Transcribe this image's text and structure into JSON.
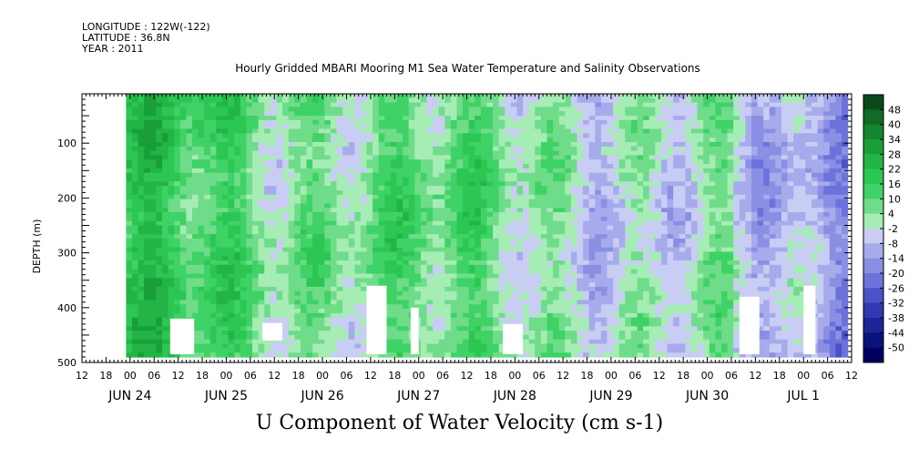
{
  "meta": {
    "longitude": "LONGITUDE : 122W(-122)",
    "latitude": "LATITUDE : 36.8N",
    "year": "YEAR : 2011"
  },
  "chart_data": {
    "type": "heatmap",
    "title": "Hourly Gridded MBARI Mooring M1 Sea Water Temperature and Salinity Observations",
    "bottom_title": "U Component of Water Velocity (cm s-1)",
    "ylabel": "DEPTH (m)",
    "ylim": [
      500,
      10
    ],
    "y_ticks": [
      100,
      200,
      300,
      400,
      500
    ],
    "x_hour_labels": [
      "12",
      "18",
      "00",
      "06",
      "12",
      "18",
      "00",
      "06",
      "12",
      "18",
      "00",
      "06",
      "12",
      "18",
      "00",
      "06",
      "12",
      "18",
      "00",
      "06",
      "12",
      "18",
      "00",
      "06",
      "12",
      "18",
      "00",
      "06",
      "12",
      "18",
      "00",
      "06",
      "12"
    ],
    "x_day_labels": [
      "JUN 24",
      "JUN 25",
      "JUN 26",
      "JUN 27",
      "JUN 28",
      "JUN 29",
      "JUN 30",
      "JUL  1"
    ],
    "colorbar_levels": [
      "48",
      "40",
      "34",
      "28",
      "22",
      "16",
      "10",
      "4",
      "-2",
      "-8",
      "-14",
      "-20",
      "-26",
      "-32",
      "-38",
      "-44",
      "-50"
    ],
    "colorbar_colors": [
      "#0a4a1a",
      "#0f6b25",
      "#14862e",
      "#1a9e38",
      "#22b546",
      "#2cc653",
      "#3fd266",
      "#6fdc89",
      "#a6ecb5",
      "#c9cdf3",
      "#a7abec",
      "#8a8fe4",
      "#6c72db",
      "#4a52c8",
      "#3039b0",
      "#1c2496",
      "#0c127c",
      "#000060"
    ],
    "time_range_hours": [
      -12,
      180
    ],
    "data_depth_range": [
      10,
      485
    ],
    "data_description_series": [
      {
        "day": "JUN 24",
        "dominant": "positive (green, ~10 to 22)"
      },
      {
        "day": "JUN 25",
        "dominant": "positive (green, ~10 to 22)"
      },
      {
        "day": "JUN 26",
        "dominant": "positive (green, ~4 to 16)"
      },
      {
        "day": "JUN 27",
        "dominant": "mixed (green with light blue near surface)"
      },
      {
        "day": "JUN 28",
        "dominant": "positive near 0 to 10"
      },
      {
        "day": "JUN 29",
        "dominant": "mixed green / light blue"
      },
      {
        "day": "JUN 30",
        "dominant": "mixed, negative (blue) late"
      },
      {
        "day": "JUL  1",
        "dominant": "negative (blue, ~-8 to -20)"
      }
    ]
  }
}
